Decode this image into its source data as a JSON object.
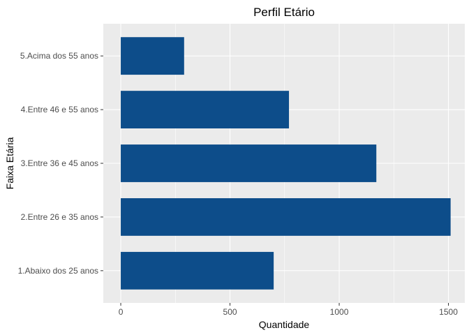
{
  "chart_data": {
    "type": "bar",
    "orientation": "horizontal",
    "title": "Perfil Etário",
    "xlabel": "Quantidade",
    "ylabel": "Faixa Etária",
    "categories": [
      "1.Abaixo dos 25 anos",
      "2.Entre 26 e 35 anos",
      "3.Entre 36 e 45 anos",
      "4.Entre 46 e 55 anos",
      "5.Acima dos 55 anos"
    ],
    "values": [
      700,
      1510,
      1170,
      770,
      290
    ],
    "xlim": [
      -80,
      1575
    ],
    "xticks": [
      0,
      500,
      1000,
      1500
    ],
    "xtick_labels": [
      "0",
      "500",
      "1000",
      "1500"
    ],
    "grid": true,
    "legend": "none",
    "colors": {
      "bar": "#0D4D8A",
      "panel": "#EBEBEB",
      "grid": "#FFFFFF"
    }
  }
}
